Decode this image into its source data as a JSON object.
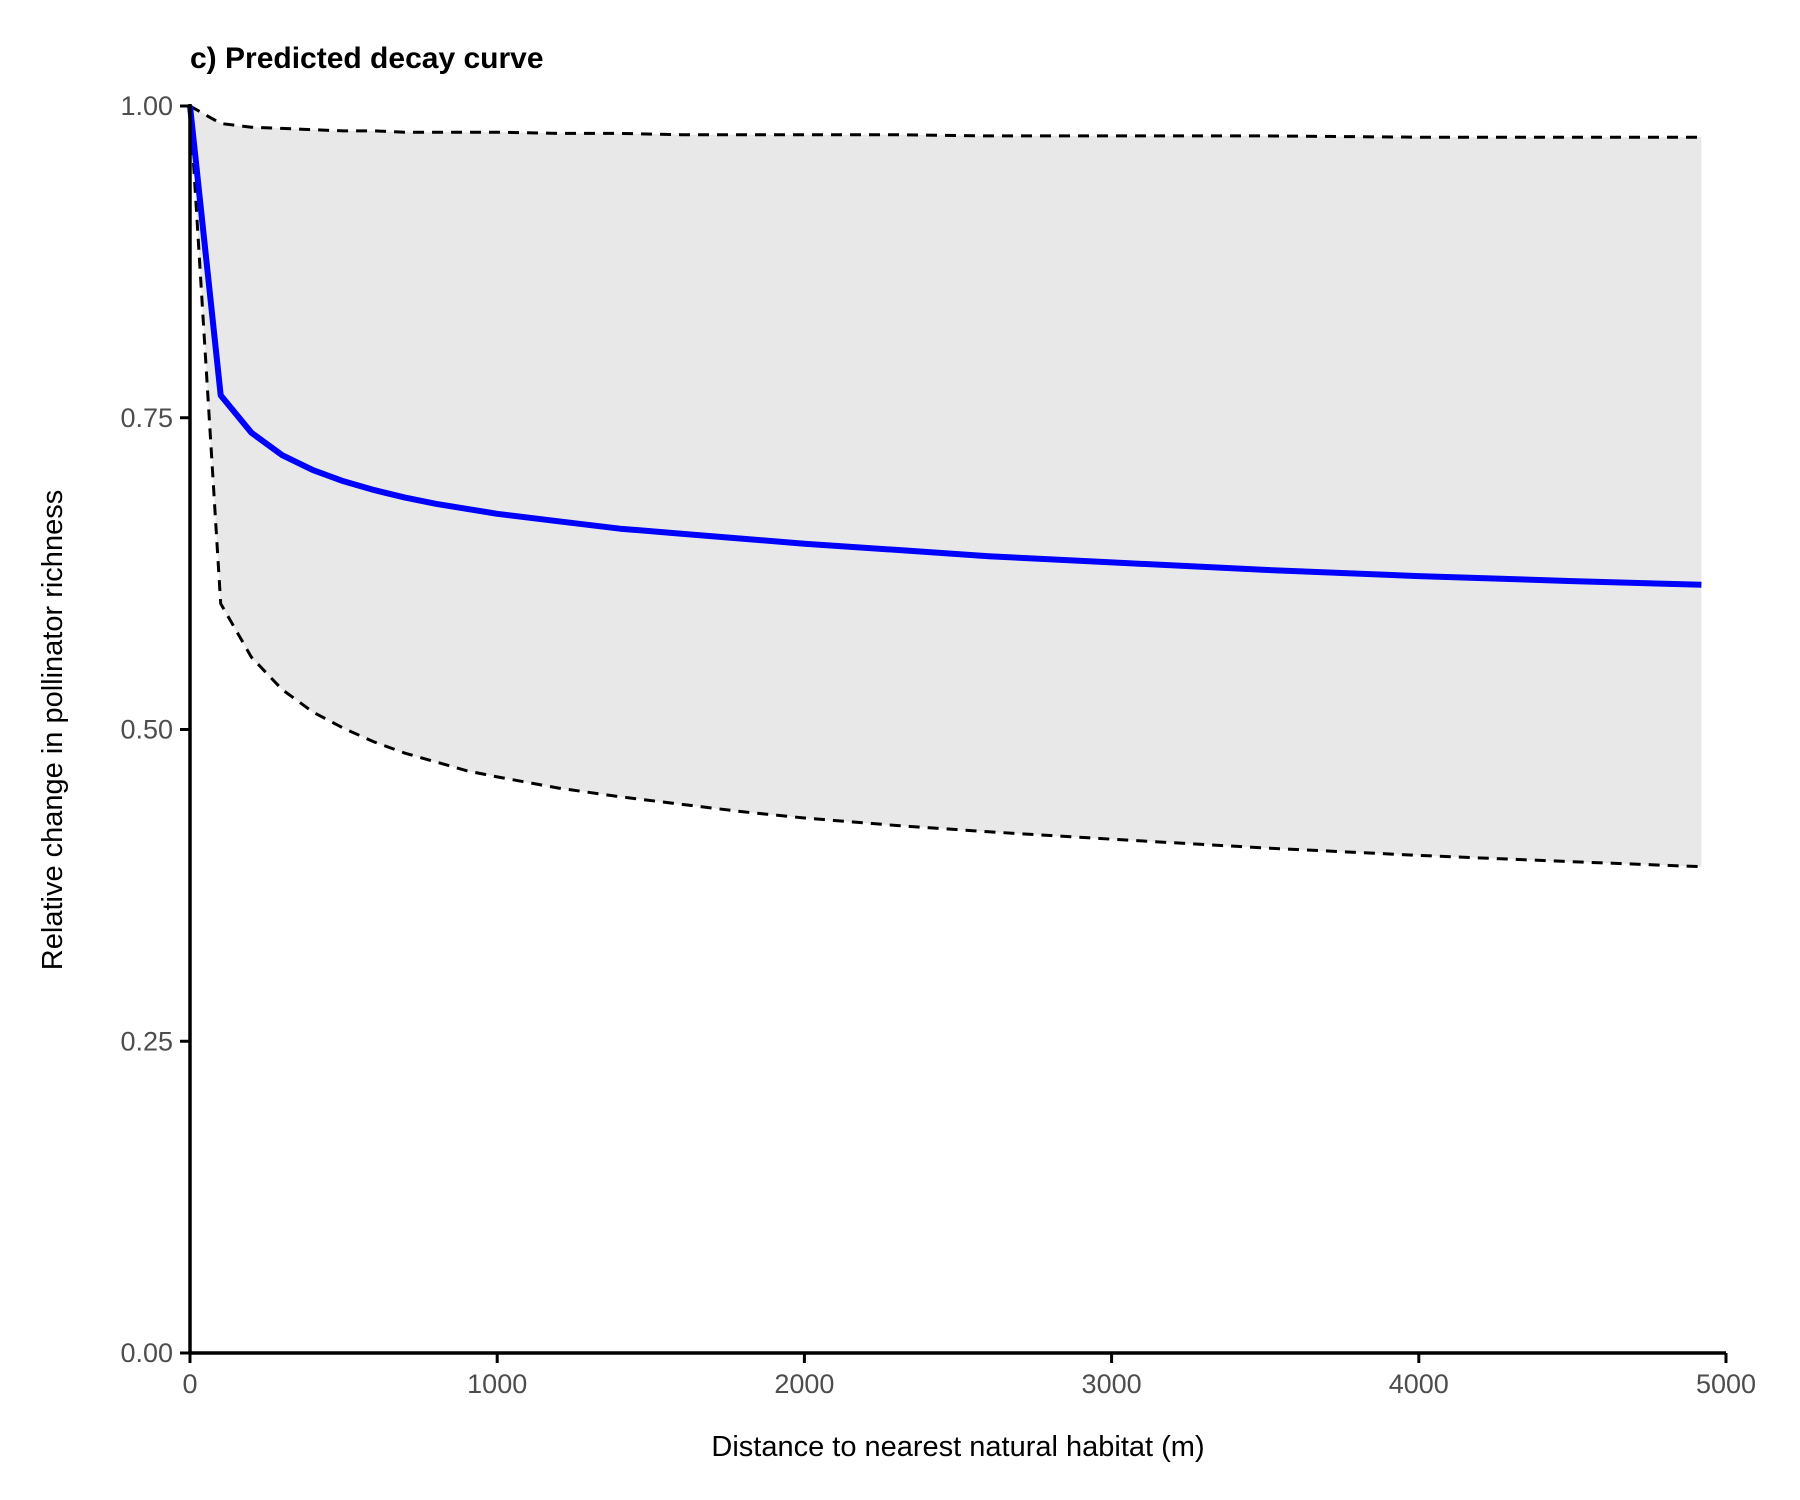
{
  "chart_data": {
    "type": "line",
    "title": "c) Predicted decay curve",
    "xlabel": "Distance to nearest natural habitat (m)",
    "ylabel": "Relative change in pollinator richness",
    "xlim": [
      0,
      5000
    ],
    "ylim": [
      0,
      1
    ],
    "x_ticks": [
      0,
      1000,
      2000,
      3000,
      4000,
      5000
    ],
    "x_tick_labels": [
      "0",
      "1000",
      "2000",
      "3000",
      "4000",
      "5000"
    ],
    "y_ticks": [
      0,
      0.25,
      0.5,
      0.75,
      1.0
    ],
    "y_tick_labels": [
      "0.00",
      "0.25",
      "0.50",
      "0.75",
      "1.00"
    ],
    "grid": false,
    "legend": "none",
    "colors": {
      "fit": "#0000ff",
      "bounds": "#000000",
      "band": "#e8e8e8",
      "axis": "#000000"
    },
    "x": [
      0,
      100,
      200,
      300,
      400,
      500,
      600,
      700,
      800,
      900,
      1000,
      1200,
      1400,
      1600,
      1800,
      2000,
      2300,
      2600,
      3000,
      3500,
      4000,
      4500,
      4920
    ],
    "series": [
      {
        "role": "fit",
        "values": [
          1.0,
          0.768,
          0.738,
          0.72,
          0.708,
          0.699,
          0.692,
          0.686,
          0.681,
          0.677,
          0.673,
          0.667,
          0.661,
          0.657,
          0.653,
          0.649,
          0.644,
          0.639,
          0.634,
          0.628,
          0.623,
          0.619,
          0.616
        ]
      },
      {
        "role": "upper",
        "values": [
          1.0,
          0.986,
          0.983,
          0.982,
          0.981,
          0.98,
          0.98,
          0.979,
          0.979,
          0.979,
          0.979,
          0.978,
          0.978,
          0.977,
          0.977,
          0.977,
          0.977,
          0.976,
          0.976,
          0.976,
          0.975,
          0.975,
          0.975
        ]
      },
      {
        "role": "lower",
        "values": [
          1.0,
          0.601,
          0.558,
          0.532,
          0.514,
          0.501,
          0.49,
          0.481,
          0.474,
          0.467,
          0.462,
          0.453,
          0.446,
          0.44,
          0.434,
          0.429,
          0.423,
          0.418,
          0.412,
          0.405,
          0.399,
          0.394,
          0.39
        ]
      }
    ]
  }
}
